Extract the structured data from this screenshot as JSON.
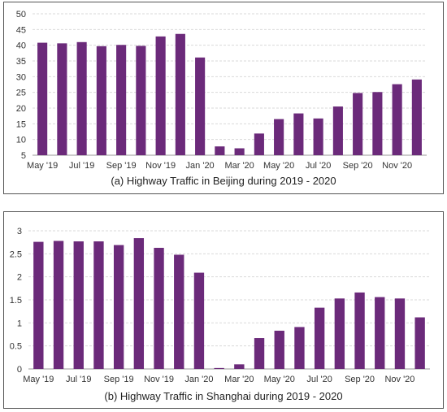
{
  "colors": {
    "bar": "#6b2a7a",
    "grid": "#d9d9d9",
    "axis": "#999999"
  },
  "chart_data": [
    {
      "type": "bar",
      "title": "(a) Highway Traffic in Beijing during 2019 - 2020",
      "xlabel": "",
      "ylabel": "",
      "ylim": [
        5,
        50
      ],
      "yticks": [
        5,
        10,
        15,
        20,
        25,
        30,
        35,
        40,
        45,
        50
      ],
      "grid": true,
      "categories": [
        "May '19",
        "Jun '19",
        "Jul '19",
        "Aug '19",
        "Sep '19",
        "Oct '19",
        "Nov '19",
        "Dec '19",
        "Jan '20",
        "Feb '20",
        "Mar '20",
        "Apr '20",
        "May '20",
        "Jun '20",
        "Jul '20",
        "Aug '20",
        "Sep '20",
        "Oct '20",
        "Nov '20",
        "Dec '20"
      ],
      "tick_labels": [
        "May '19",
        "",
        "Jul '19",
        "",
        "Sep '19",
        "",
        "Nov '19",
        "",
        "Jan '20",
        "",
        "Mar '20",
        "",
        "May '20",
        "",
        "Jul '20",
        "",
        "Sep '20",
        "",
        "Nov '20",
        ""
      ],
      "values": [
        40.8,
        40.6,
        41.0,
        39.7,
        40.1,
        39.8,
        42.8,
        43.6,
        36.1,
        7.8,
        7.2,
        11.9,
        16.5,
        18.3,
        16.7,
        20.5,
        24.8,
        25.1,
        27.6,
        29.1
      ]
    },
    {
      "type": "bar",
      "title": "(b) Highway Traffic in Shanghai during 2019 - 2020",
      "xlabel": "",
      "ylabel": "",
      "ylim": [
        0,
        3
      ],
      "yticks": [
        0,
        0.5,
        1,
        1.5,
        2,
        2.5,
        3
      ],
      "grid": true,
      "categories": [
        "May '19",
        "Jun '19",
        "Jul '19",
        "Aug '19",
        "Sep '19",
        "Oct '19",
        "Nov '19",
        "Dec '19",
        "Jan '20",
        "Feb '20",
        "Mar '20",
        "Apr '20",
        "May '20",
        "Jun '20",
        "Jul '20",
        "Aug '20",
        "Sep '20",
        "Oct '20",
        "Nov '20",
        "Dec '20"
      ],
      "tick_labels": [
        "May '19",
        "",
        "Jul '19",
        "",
        "Sep '19",
        "",
        "Nov '19",
        "",
        "Jan '20",
        "",
        "Mar '20",
        "",
        "May '20",
        "",
        "Jul '20",
        "",
        "Sep '20",
        "",
        "Nov '20",
        ""
      ],
      "values": [
        2.76,
        2.78,
        2.77,
        2.77,
        2.69,
        2.84,
        2.63,
        2.48,
        2.09,
        0.02,
        0.1,
        0.67,
        0.83,
        0.91,
        1.33,
        1.53,
        1.66,
        1.56,
        1.53,
        1.12
      ]
    }
  ]
}
